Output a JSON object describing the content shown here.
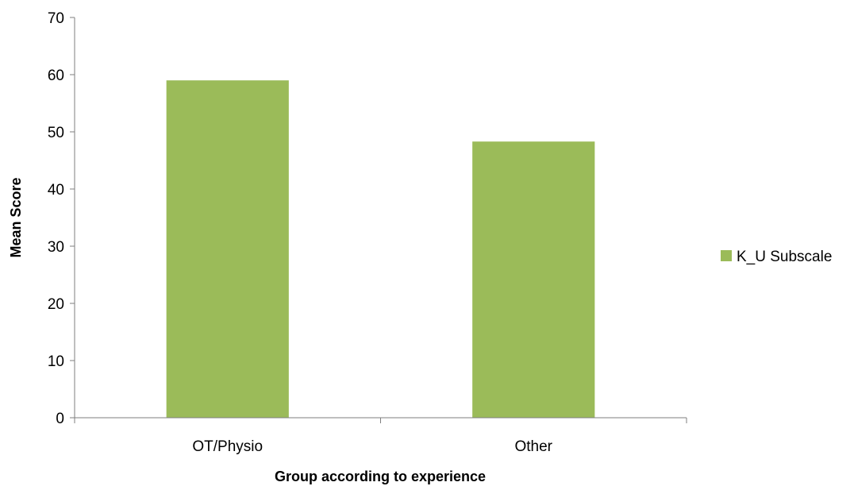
{
  "chart_data": {
    "type": "bar",
    "categories": [
      "OT/Physio",
      "Other"
    ],
    "series": [
      {
        "name": "K_U Subscale",
        "values": [
          59,
          48.3
        ],
        "color": "#9bbb59"
      }
    ],
    "title": "",
    "xlabel": "Group according to experience",
    "ylabel": "Mean Score",
    "ylim": [
      0,
      70
    ],
    "yticks": [
      0,
      10,
      20,
      30,
      40,
      50,
      60,
      70
    ],
    "grid": false,
    "legend": "right"
  }
}
